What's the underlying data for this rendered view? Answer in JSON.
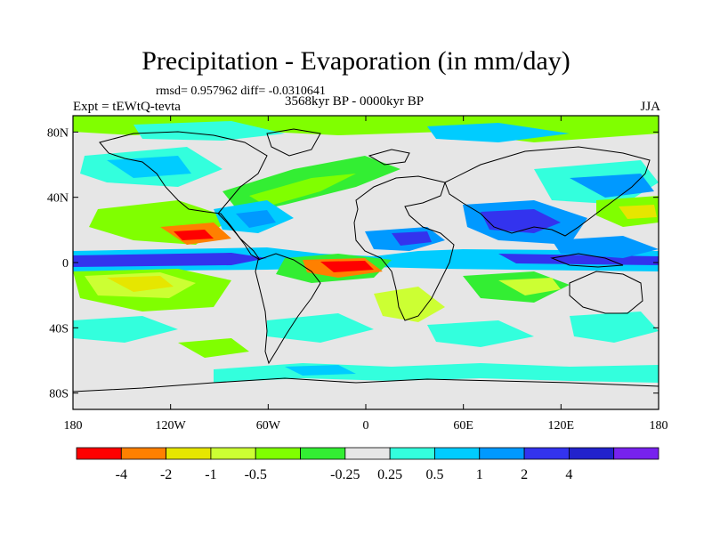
{
  "title": "Precipitation - Evaporation (in mm/day)",
  "stats_text": "rmsd= 0.957962 diff= -0.0310641",
  "experiment_label": "Expt = tEWtQ-tevta",
  "period_label": "3568kyr BP - 0000kyr BP",
  "season_label": "JJA",
  "lat_ticks": [
    {
      "label": "80N",
      "lat": 80
    },
    {
      "label": "40N",
      "lat": 40
    },
    {
      "label": "0",
      "lat": 0
    },
    {
      "label": "40S",
      "lat": -40
    },
    {
      "label": "80S",
      "lat": -80
    }
  ],
  "lon_ticks": [
    {
      "label": "180",
      "lon": -180
    },
    {
      "label": "120W",
      "lon": -120
    },
    {
      "label": "60W",
      "lon": -60
    },
    {
      "label": "0",
      "lon": 0
    },
    {
      "label": "60E",
      "lon": 60
    },
    {
      "label": "120E",
      "lon": 120
    },
    {
      "label": "180",
      "lon": 180
    }
  ],
  "colorbar": {
    "colors": [
      "#ff0000",
      "#ff8000",
      "#e6e600",
      "#ccff33",
      "#80ff00",
      "#33ee33",
      "#e6e6e6",
      "#33ffdd",
      "#00ccff",
      "#0099ff",
      "#3333ee",
      "#2222cc",
      "#7722ee"
    ],
    "labels": [
      "-4",
      "-2",
      "-1",
      "-0.5",
      "-0.25",
      "0.25",
      "0.5",
      "1",
      "2",
      "4"
    ]
  }
}
